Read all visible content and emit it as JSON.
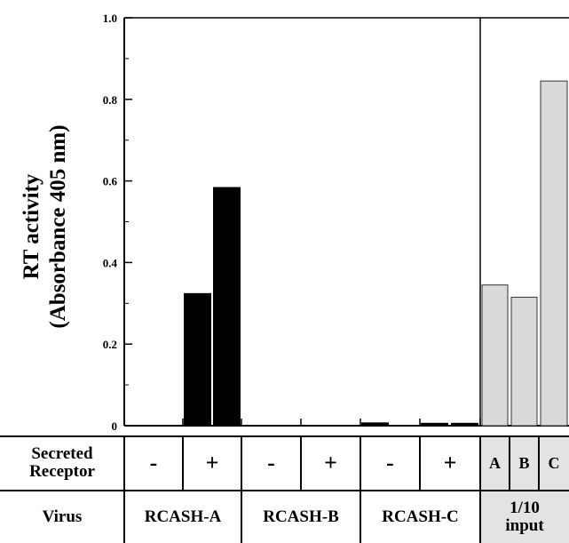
{
  "chart_data": {
    "type": "bar",
    "ylabel_line1": "RT activity",
    "ylabel_line2": "(Absorbance 405 nm)",
    "ylim": [
      0,
      1.0
    ],
    "yticks": [
      {
        "value": 0,
        "label": "0"
      },
      {
        "value": 0.2,
        "label": "0.2"
      },
      {
        "value": 0.4,
        "label": "0.4"
      },
      {
        "value": 0.6,
        "label": "0.6"
      },
      {
        "value": 0.8,
        "label": "0.8"
      },
      {
        "value": 1.0,
        "label": "1.0"
      }
    ],
    "grid": false,
    "bars": [
      {
        "virus": "RCASH-A",
        "secreted_receptor": "-",
        "value": 0.0,
        "group": "virus"
      },
      {
        "virus": "RCASH-A",
        "secreted_receptor": "+",
        "value": 0.325,
        "group": "virus"
      },
      {
        "virus": "RCASH-A",
        "secreted_receptor": "+",
        "value": 0.585,
        "group": "virus"
      },
      {
        "virus": "RCASH-B",
        "secreted_receptor": "-",
        "value": 0.0,
        "group": "virus"
      },
      {
        "virus": "RCASH-B",
        "secreted_receptor": "+",
        "value": 0.0,
        "group": "virus"
      },
      {
        "virus": "RCASH-C",
        "secreted_receptor": "-",
        "value": 0.008,
        "group": "virus"
      },
      {
        "virus": "RCASH-C",
        "secreted_receptor": "+",
        "value": 0.007,
        "group": "virus"
      },
      {
        "virus": "RCASH-C",
        "secreted_receptor": "+",
        "value": 0.007,
        "group": "virus"
      },
      {
        "virus": "1/10 input",
        "secreted_receptor": "A",
        "value": 0.345,
        "group": "input"
      },
      {
        "virus": "1/10 input",
        "secreted_receptor": "B",
        "value": 0.315,
        "group": "input"
      },
      {
        "virus": "1/10 input",
        "secreted_receptor": "C",
        "value": 0.845,
        "group": "input"
      }
    ],
    "colors": {
      "virus": "#000000",
      "input": "#d9d9d9",
      "input_stroke": "#333333"
    }
  },
  "table": {
    "row1_header_line1": "Secreted",
    "row1_header_line2": "Receptor",
    "row1_cells": [
      "-",
      "+",
      "-",
      "+",
      "-",
      "+",
      "A",
      "B",
      "C"
    ],
    "row2_header": "Virus",
    "row2_cells": [
      "RCASH-A",
      "RCASH-B",
      "RCASH-C"
    ],
    "row2_input_line1": "1/10",
    "row2_input_line2": "input"
  }
}
